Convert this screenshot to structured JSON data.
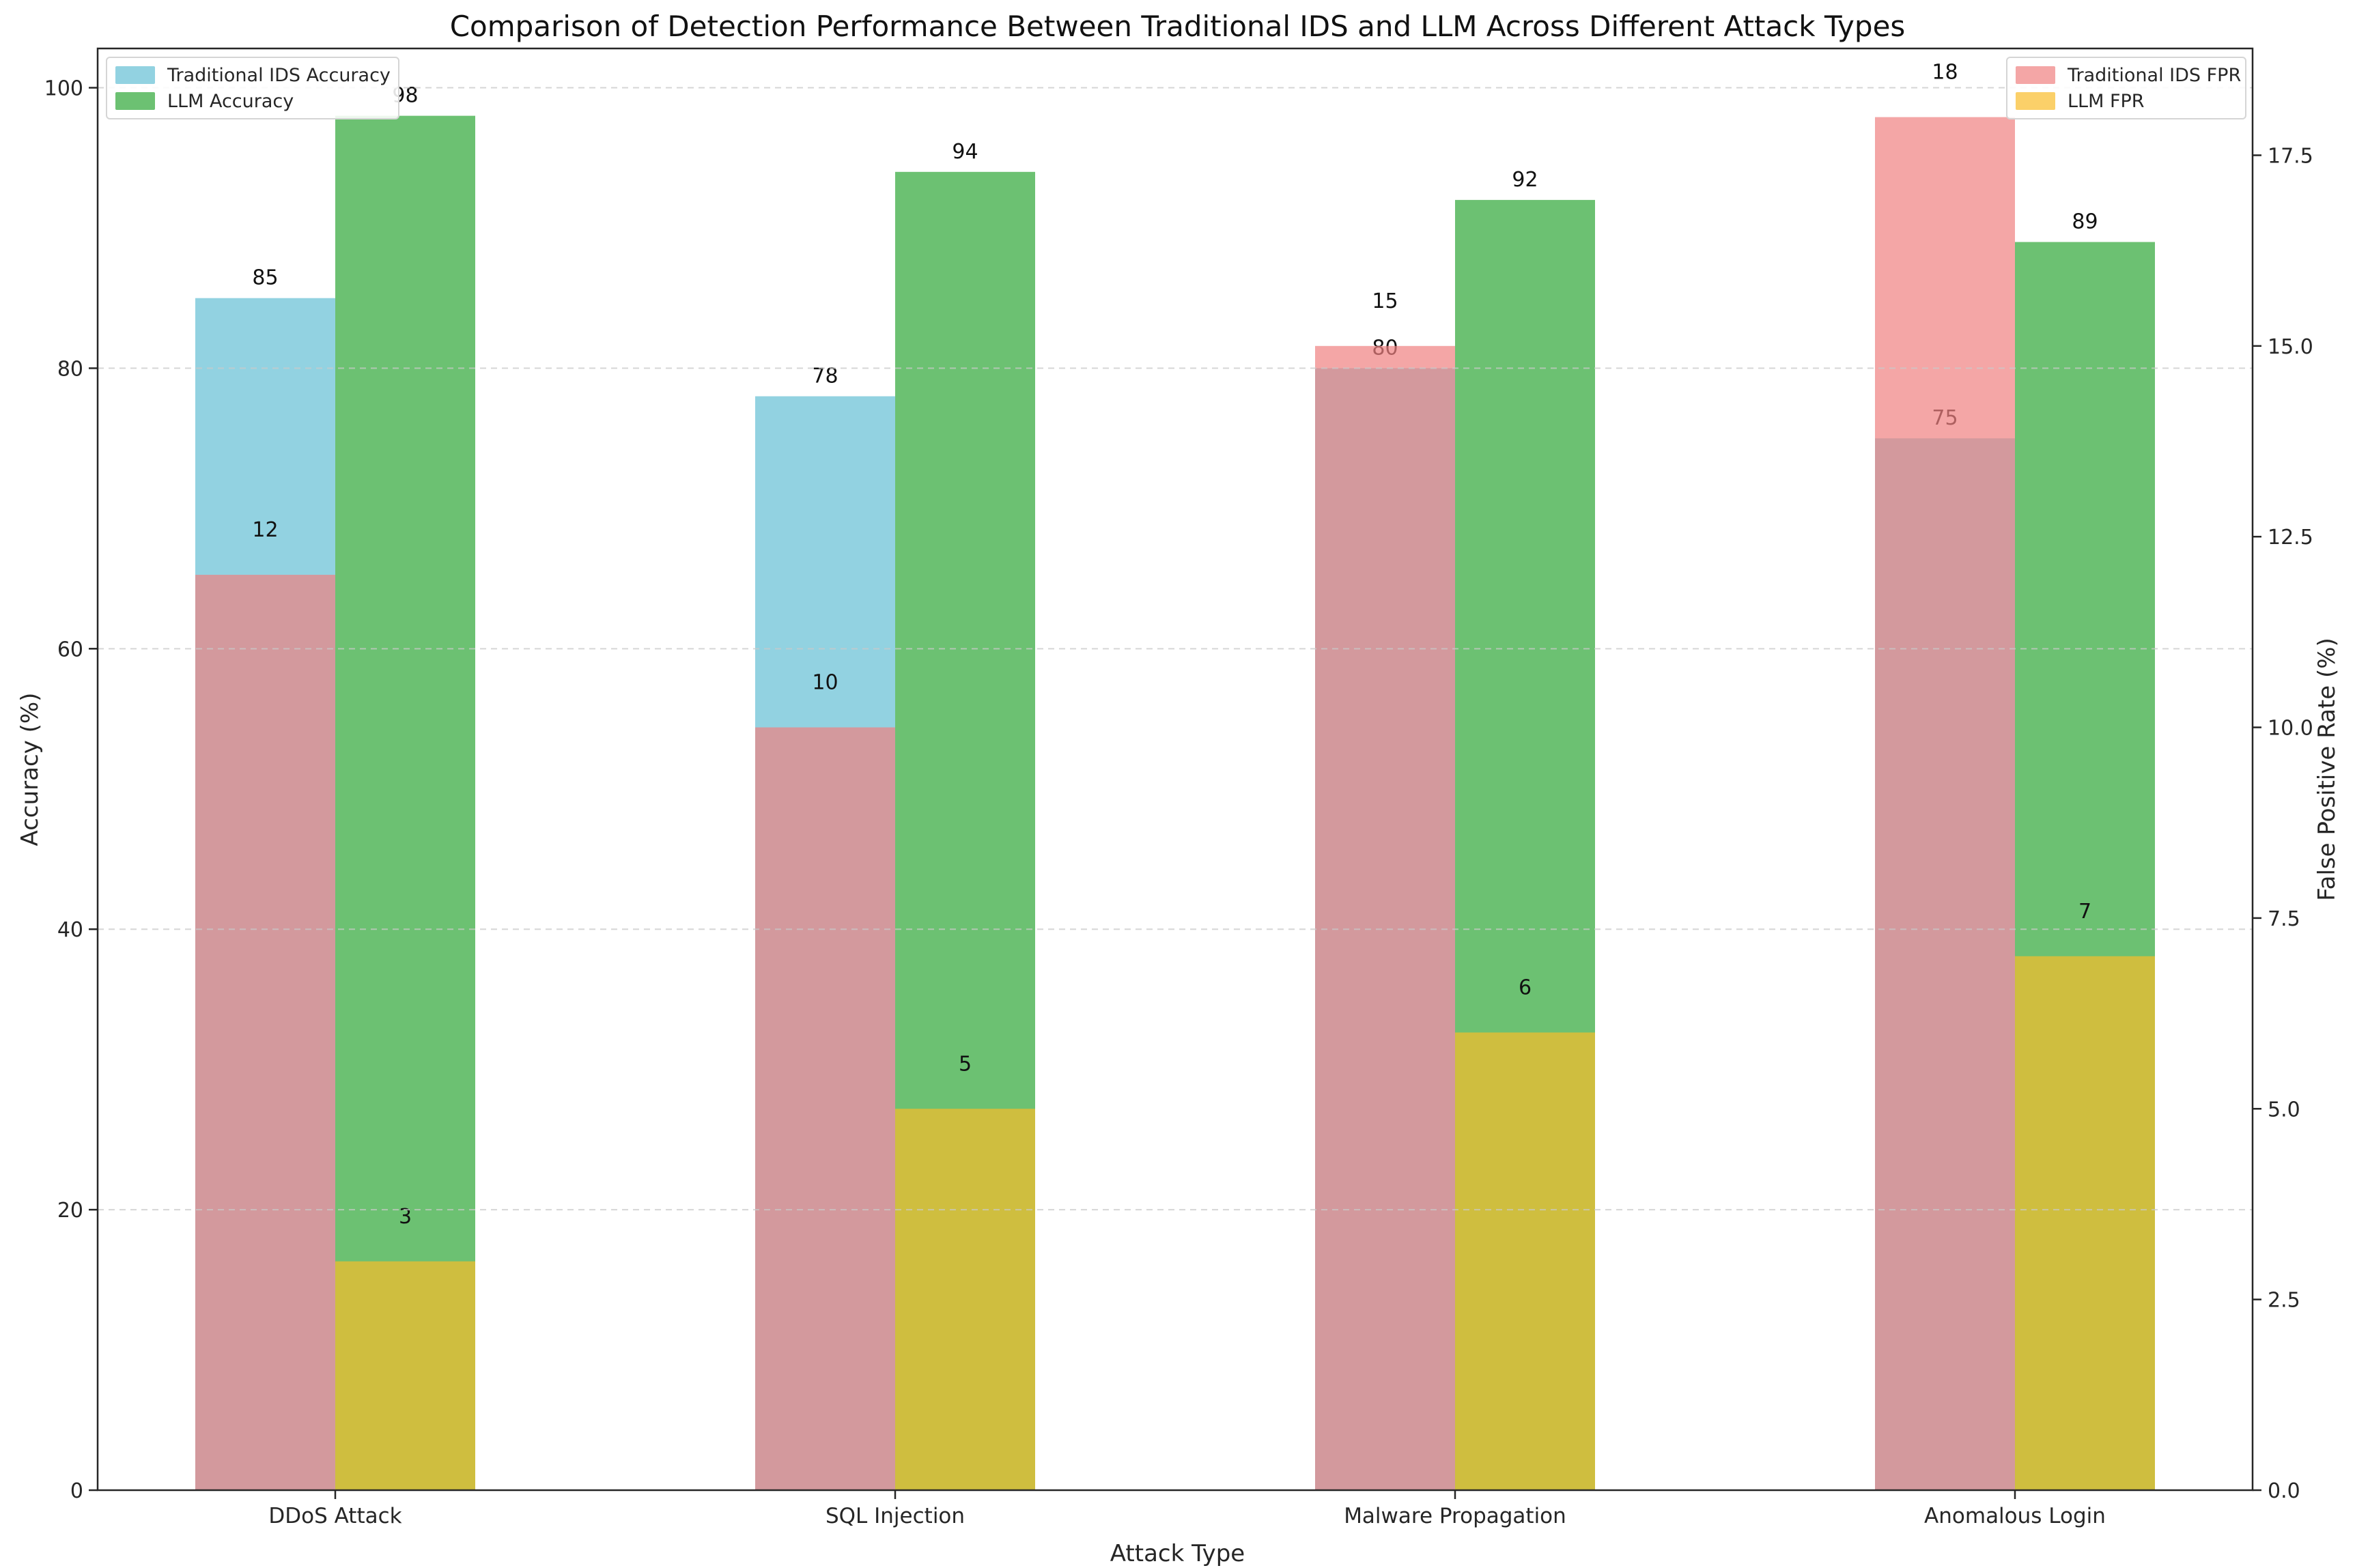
{
  "title": "Comparison of Detection Performance Between Traditional IDS and LLM Across Different Attack Types",
  "axes": {
    "x_label": "Attack Type",
    "left_label": "Accuracy (%)",
    "right_label": "False Positive Rate (%)",
    "left_ticks": [
      "0",
      "20",
      "40",
      "60",
      "80",
      "100"
    ],
    "right_ticks": [
      "0.0",
      "2.5",
      "5.0",
      "7.5",
      "10.0",
      "12.5",
      "15.0",
      "17.5"
    ]
  },
  "legend_left": {
    "items": [
      {
        "label": "Traditional IDS Accuracy"
      },
      {
        "label": "LLM Accuracy"
      }
    ]
  },
  "legend_right": {
    "items": [
      {
        "label": "Traditional IDS FPR"
      },
      {
        "label": "LLM FPR"
      }
    ]
  },
  "colors": {
    "traditional_ids_accuracy": "#92d2e1",
    "llm_accuracy": "#6cc172",
    "traditional_ids_fpr": "#f08080",
    "llm_fpr": "#f9bc29",
    "grid": "#c8c8c8",
    "spine": "#262626",
    "text": "#262626",
    "value_label": "#111111",
    "background": "#ffffff"
  },
  "chart_data": {
    "type": "bar",
    "categories": [
      "DDoS Attack",
      "SQL Injection",
      "Malware Propagation",
      "Anomalous Login"
    ],
    "series": [
      {
        "name": "Traditional IDS Accuracy",
        "axis": "left",
        "color": "#92d2e1",
        "opacity": 1,
        "values": [
          85,
          78,
          80,
          75
        ]
      },
      {
        "name": "LLM Accuracy",
        "axis": "left",
        "color": "#6cc172",
        "opacity": 1,
        "values": [
          98,
          94,
          92,
          89
        ]
      },
      {
        "name": "Traditional IDS FPR",
        "axis": "right",
        "color": "#f08080",
        "opacity": 0.7,
        "values": [
          12,
          10,
          15,
          18
        ]
      },
      {
        "name": "LLM FPR",
        "axis": "right",
        "color": "#f9bc29",
        "opacity": 0.7,
        "values": [
          3,
          5,
          6,
          7
        ]
      }
    ],
    "left_ylim": [
      0,
      102.8
    ],
    "right_ylim": [
      0,
      18.9
    ],
    "ylabel": "Accuracy (%)",
    "y2label": "False Positive Rate (%)",
    "xlabel": "Attack Type",
    "grid": "horizontal-dashed-on-top",
    "value_labels": true,
    "legend_positions": [
      "upper left",
      "upper right"
    ],
    "bar_overlay_note": "FPR bars (right axis, alpha 0.7) are drawn directly on top of the accuracy bars (left axis)"
  }
}
